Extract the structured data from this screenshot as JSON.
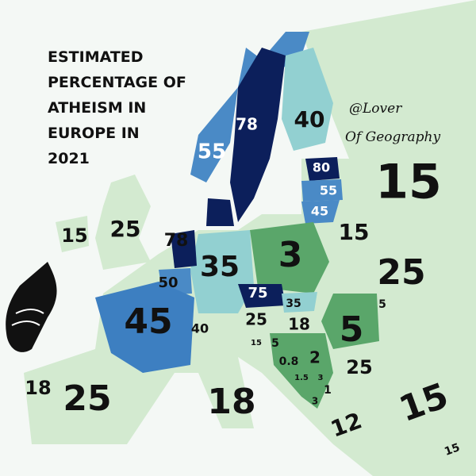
{
  "title": {
    "lines": [
      "ESTIMATED",
      "PERCENTAGE OF",
      "ATHEISM IN",
      "EUROPE IN",
      "2021"
    ]
  },
  "credit": {
    "lines": [
      "@Lover",
      "Of Geography"
    ]
  },
  "regions": [
    {
      "value": 78
    },
    {
      "value": 40
    },
    {
      "value": 55
    },
    {
      "value": 80
    },
    {
      "value": 55
    },
    {
      "value": 45
    },
    {
      "value": 15
    },
    {
      "value": 15
    },
    {
      "value": 25
    },
    {
      "value": 78
    },
    {
      "value": 35
    },
    {
      "value": 3
    },
    {
      "value": 15
    },
    {
      "value": 25
    },
    {
      "value": 50
    },
    {
      "value": 75
    },
    {
      "value": 35
    },
    {
      "value": 5
    },
    {
      "value": 45
    },
    {
      "value": 40
    },
    {
      "value": 25
    },
    {
      "value": 18
    },
    {
      "value": 5
    },
    {
      "value": 15
    },
    {
      "value": 5
    },
    {
      "value": 2
    },
    {
      "value": 0.8
    },
    {
      "value": 25
    },
    {
      "value": 1.5
    },
    {
      "value": 3
    },
    {
      "value": 1
    },
    {
      "value": 3
    },
    {
      "value": 18
    },
    {
      "value": 25
    },
    {
      "value": 18
    },
    {
      "value": 12
    },
    {
      "value": 15
    },
    {
      "value": 15
    }
  ]
}
